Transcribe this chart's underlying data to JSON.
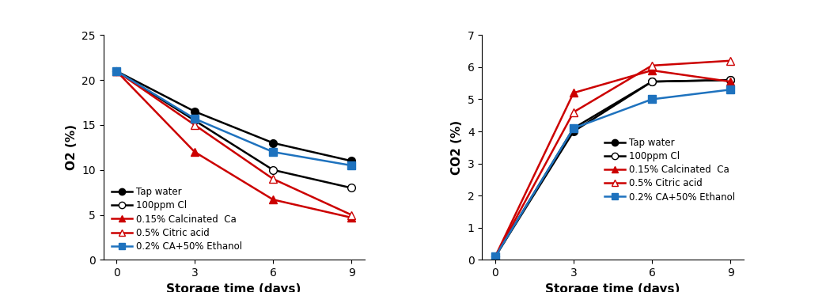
{
  "x": [
    0,
    3,
    6,
    9
  ],
  "o2": {
    "tap_water": [
      21.0,
      16.5,
      13.0,
      11.0
    ],
    "cl_100ppm": [
      21.0,
      15.5,
      10.0,
      8.0
    ],
    "calcinated_ca": [
      21.0,
      12.0,
      6.7,
      4.7
    ],
    "citric_acid": [
      21.0,
      15.0,
      9.0,
      5.0
    ],
    "ca_ethanol": [
      21.0,
      15.7,
      12.0,
      10.5
    ]
  },
  "co2": {
    "tap_water": [
      0.1,
      4.0,
      5.55,
      5.6
    ],
    "cl_100ppm": [
      0.1,
      4.1,
      5.55,
      5.6
    ],
    "calcinated_ca": [
      0.1,
      5.2,
      5.9,
      5.55
    ],
    "citric_acid": [
      0.1,
      4.6,
      6.05,
      6.2
    ],
    "ca_ethanol": [
      0.1,
      4.1,
      5.0,
      5.3
    ]
  },
  "colors": {
    "tap_water": "#000000",
    "cl_100ppm": "#000000",
    "calcinated_ca": "#cc0000",
    "citric_acid": "#cc0000",
    "ca_ethanol": "#1e72be"
  },
  "labels": {
    "tap_water": "Tap water",
    "cl_100ppm": "100ppm Cl",
    "calcinated_ca": "0.15% Calcinated  Ca",
    "citric_acid": "0.5% Citric acid",
    "ca_ethanol": "0.2% CA+50% Ethanol"
  },
  "o2_ylabel": "O2 (%)",
  "co2_ylabel": "CO2 (%)",
  "xlabel": "Storage time (days)",
  "o2_ylim": [
    0,
    25
  ],
  "co2_ylim": [
    0,
    7
  ],
  "o2_yticks": [
    0,
    5,
    10,
    15,
    20,
    25
  ],
  "co2_yticks": [
    0,
    1,
    2,
    3,
    4,
    5,
    6,
    7
  ],
  "xticks": [
    0,
    3,
    6,
    9
  ],
  "background": "#ffffff"
}
